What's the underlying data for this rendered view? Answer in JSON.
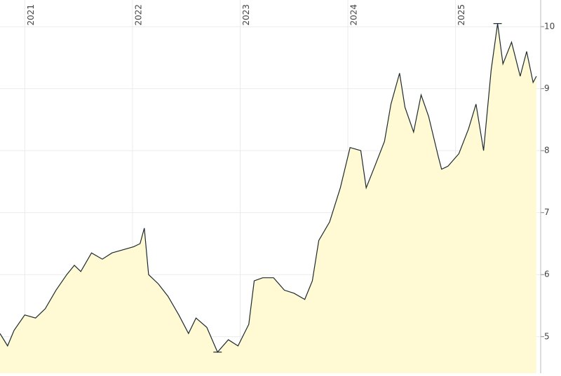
{
  "chart_data": {
    "type": "area",
    "x": [
      2020.77,
      2020.84,
      2020.9,
      2021.0,
      2021.1,
      2021.19,
      2021.29,
      2021.39,
      2021.46,
      2021.52,
      2021.62,
      2021.72,
      2021.81,
      2021.91,
      2022.01,
      2022.07,
      2022.11,
      2022.15,
      2022.24,
      2022.33,
      2022.43,
      2022.52,
      2022.59,
      2022.69,
      2022.79,
      2022.89,
      2022.98,
      2023.08,
      2023.13,
      2023.21,
      2023.31,
      2023.41,
      2023.5,
      2023.6,
      2023.67,
      2023.73,
      2023.83,
      2023.93,
      2024.02,
      2024.12,
      2024.17,
      2024.25,
      2024.34,
      2024.4,
      2024.48,
      2024.53,
      2024.61,
      2024.68,
      2024.75,
      2024.84,
      2024.87,
      2024.93,
      2025.03,
      2025.12,
      2025.19,
      2025.26,
      2025.33,
      2025.39,
      2025.44,
      2025.52,
      2025.6,
      2025.66,
      2025.72,
      2025.75
    ],
    "values": [
      5.05,
      4.85,
      5.1,
      5.35,
      5.3,
      5.45,
      5.75,
      6.0,
      6.15,
      6.05,
      6.35,
      6.25,
      6.35,
      6.4,
      6.45,
      6.5,
      6.75,
      6.0,
      5.85,
      5.65,
      5.35,
      5.05,
      5.3,
      5.15,
      4.75,
      4.95,
      4.85,
      5.2,
      5.9,
      5.95,
      5.95,
      5.75,
      5.7,
      5.6,
      5.9,
      6.55,
      6.85,
      7.4,
      8.05,
      8.0,
      7.4,
      7.75,
      8.15,
      8.75,
      9.25,
      8.7,
      8.3,
      8.9,
      8.55,
      7.9,
      7.7,
      7.75,
      7.95,
      8.35,
      8.75,
      8.0,
      9.3,
      10.05,
      9.4,
      9.75,
      9.2,
      9.6,
      9.1,
      9.2
    ],
    "color": "#1c2a30",
    "fill": "#fff9d4",
    "xlim": [
      2020.77,
      2025.79
    ],
    "xticks": [
      2021,
      2022,
      2023,
      2024,
      2025
    ],
    "ylim": [
      4.41,
      10.43
    ],
    "yticks": [
      5,
      6,
      7,
      8,
      9,
      10
    ],
    "grid": true
  }
}
